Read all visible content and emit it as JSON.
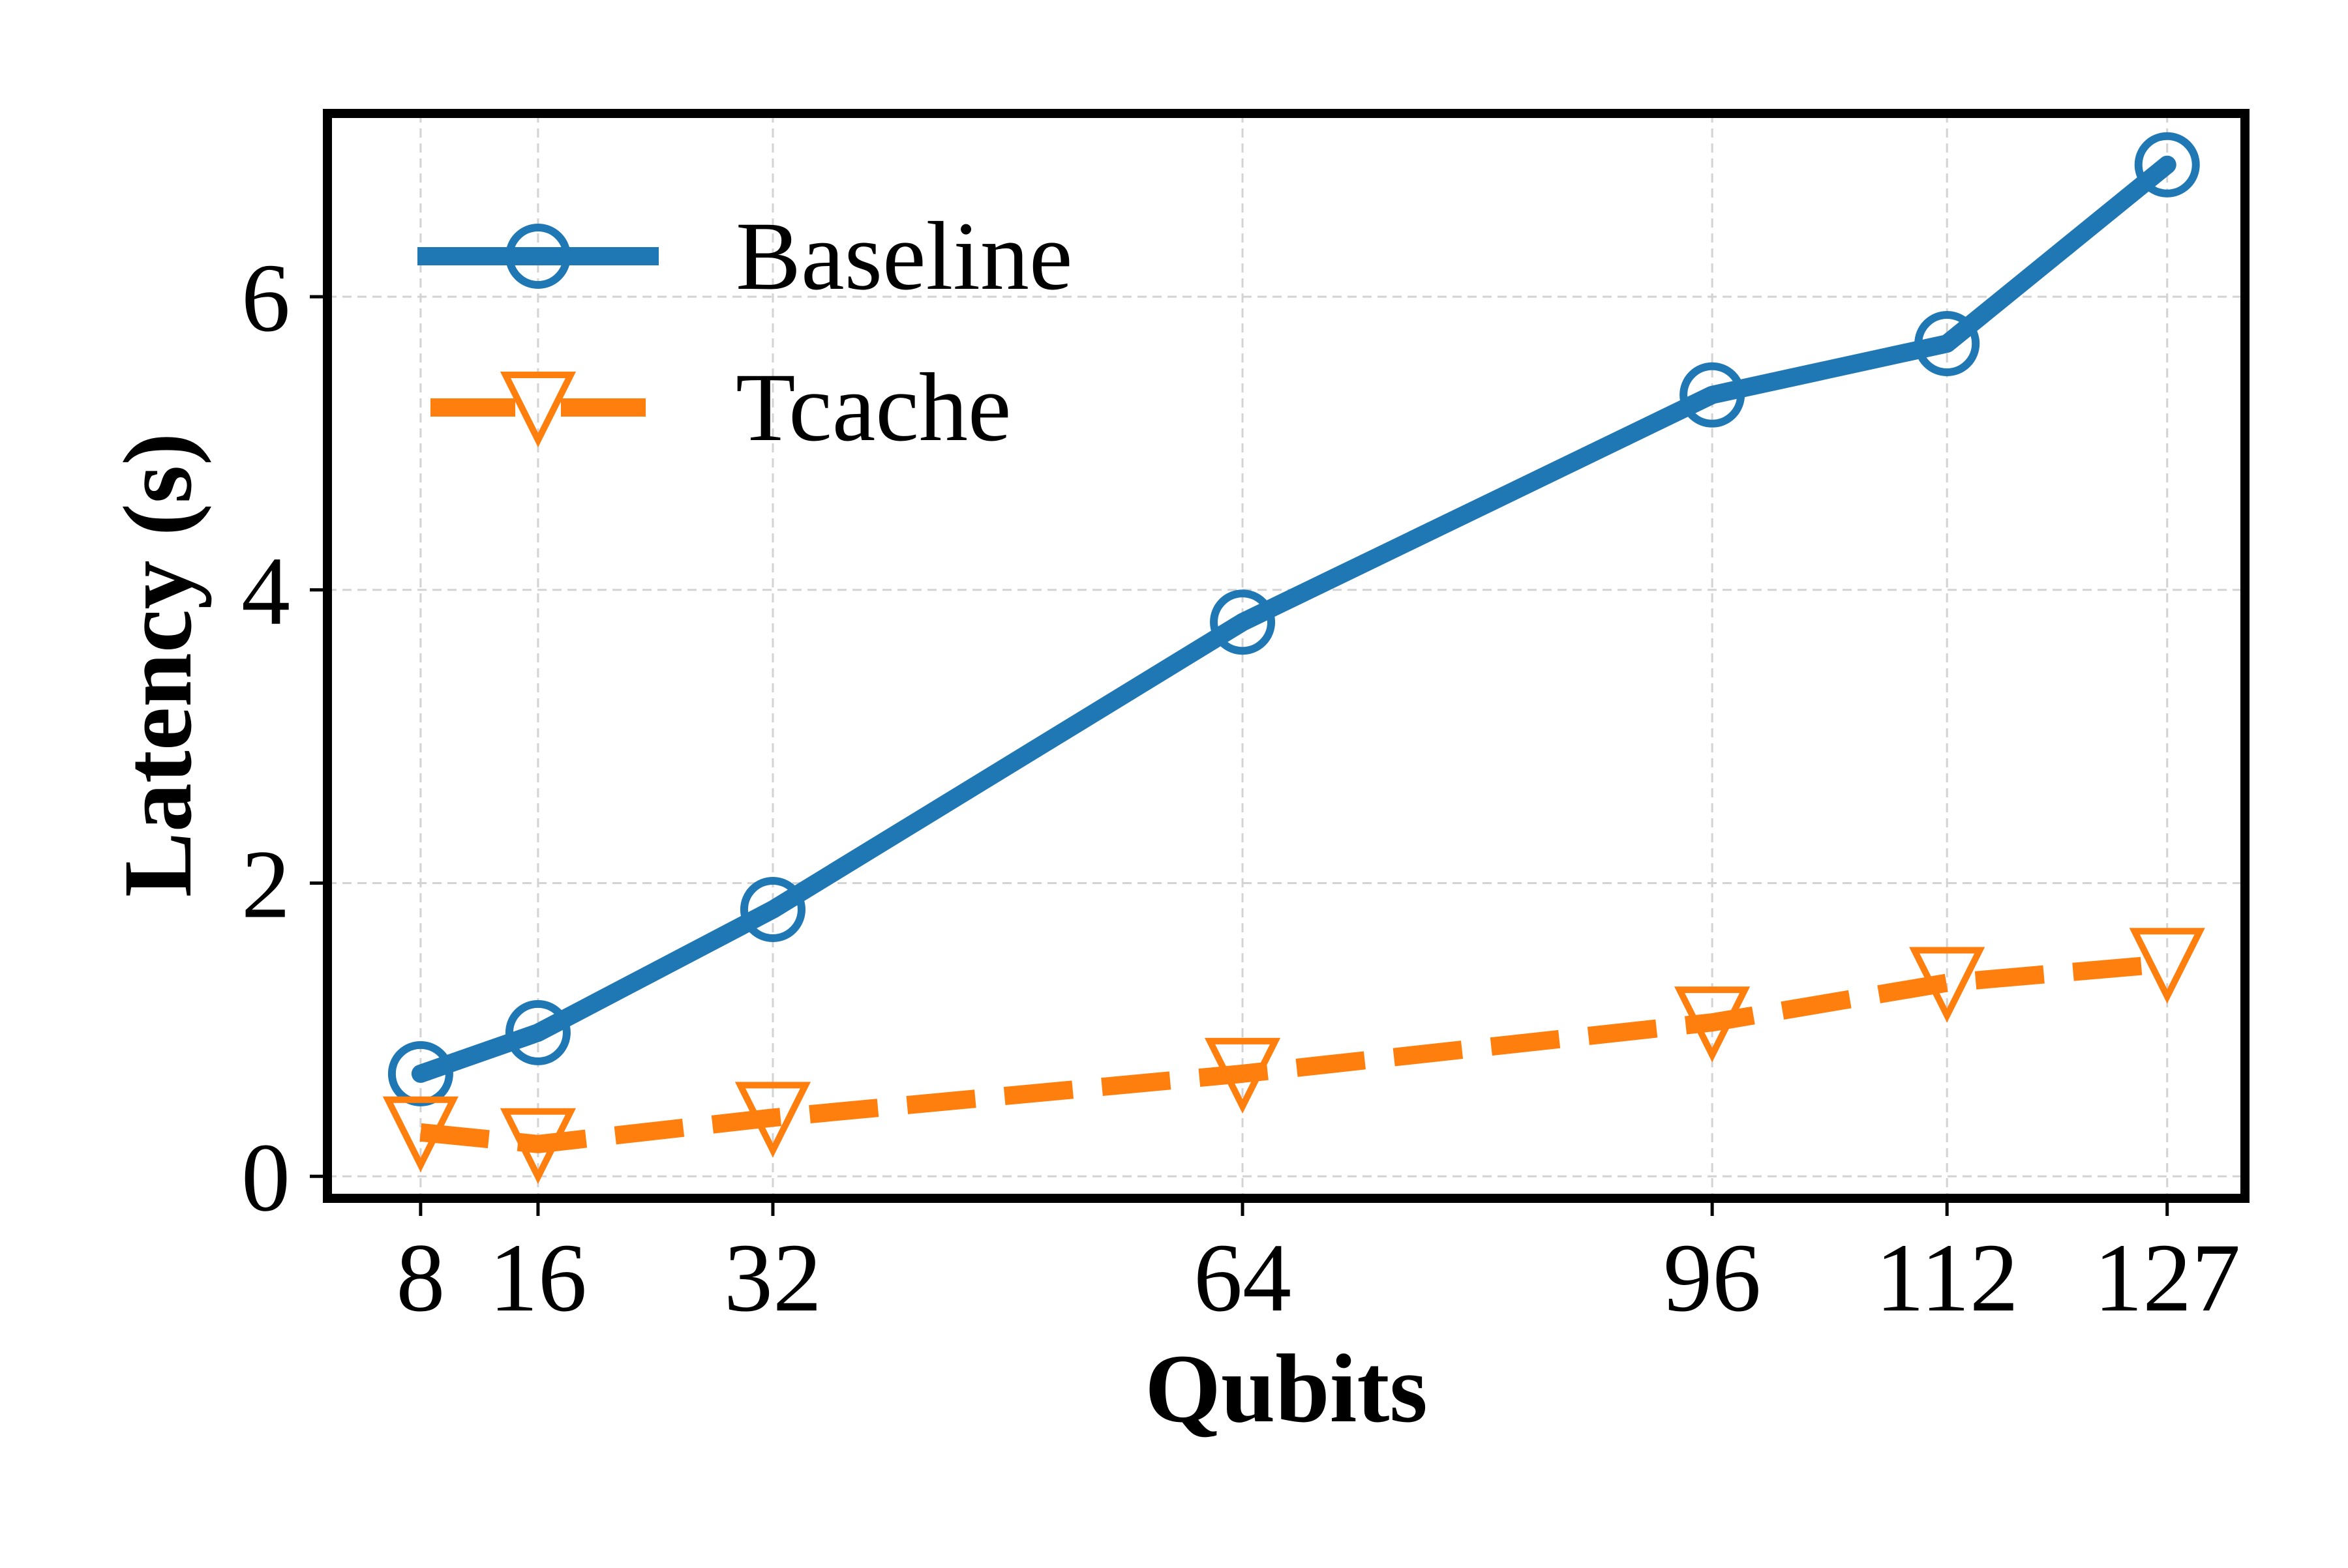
{
  "chart_data": {
    "type": "line",
    "title": "",
    "xlabel": "Qubits",
    "ylabel": "Latency (s)",
    "x": [
      8,
      16,
      32,
      64,
      96,
      112,
      127
    ],
    "x_tick_labels": [
      "8",
      "16",
      "32",
      "64",
      "96",
      "112",
      "127"
    ],
    "xlim": [
      1.65,
      132.3
    ],
    "ylim": [
      -0.15,
      7.25
    ],
    "y_ticks": [
      0,
      2,
      4,
      6
    ],
    "y_tick_labels": [
      "0",
      "2",
      "4",
      "6"
    ],
    "grid": true,
    "legend_position": "upper-left",
    "series": [
      {
        "name": "Baseline",
        "values": [
          0.7,
          0.98,
          1.82,
          3.78,
          5.33,
          5.68,
          6.9
        ],
        "color": "#1f77b4",
        "line_style": "solid",
        "marker": "circle"
      },
      {
        "name": "Tcache",
        "values": [
          0.3,
          0.22,
          0.4,
          0.7,
          1.05,
          1.32,
          1.45
        ],
        "color": "#ff7f0e",
        "line_style": "dashed",
        "marker": "triangle-down"
      }
    ]
  }
}
